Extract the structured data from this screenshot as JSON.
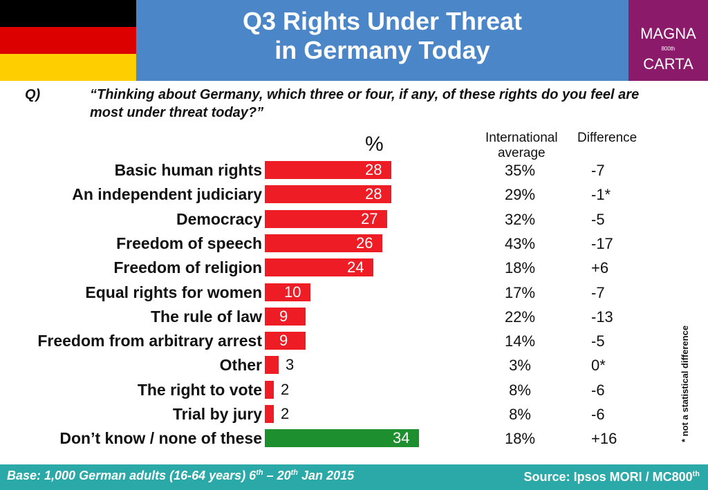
{
  "flag_colors": [
    "#000000",
    "#dd0000",
    "#ffce00"
  ],
  "header": {
    "title_line1": "Q3 Rights Under Threat",
    "title_line2": "in Germany Today"
  },
  "logo": {
    "line1": "MAGNA",
    "line2": "CARTA",
    "small": "800th"
  },
  "question": {
    "label": "Q)",
    "text": "“Thinking about Germany, which three or four, if any, of these rights do you feel are most under threat today?”"
  },
  "columns": {
    "percent": "%",
    "intl_line1": "International",
    "intl_line2": "average",
    "difference": "Difference"
  },
  "chart_data": {
    "type": "bar",
    "orientation": "horizontal",
    "title": "Q3 Rights Under Threat in Germany Today",
    "ylabel": "%",
    "categories": [
      "Basic human rights",
      "An independent judiciary",
      "Democracy",
      "Freedom of speech",
      "Freedom of religion",
      "Equal rights for women",
      "The rule of law",
      "Freedom from arbitrary arrest",
      "Other",
      "The right to vote",
      "Trial by jury",
      "Don’t know / none of these"
    ],
    "values": [
      28,
      28,
      27,
      26,
      24,
      10,
      9,
      9,
      3,
      2,
      2,
      34
    ],
    "bar_colors": [
      "#ee1c24",
      "#ee1c24",
      "#ee1c24",
      "#ee1c24",
      "#ee1c24",
      "#ee1c24",
      "#ee1c24",
      "#ee1c24",
      "#ee1c24",
      "#ee1c24",
      "#ee1c24",
      "#1e8f2e"
    ],
    "international_average": [
      "35%",
      "29%",
      "32%",
      "43%",
      "18%",
      "17%",
      "22%",
      "14%",
      "3%",
      "8%",
      "8%",
      "18%"
    ],
    "difference": [
      "-7",
      "-1*",
      "-5",
      "-17",
      "+6",
      "-7",
      "-13",
      "-5",
      "0*",
      "-6",
      "-6",
      "+16"
    ],
    "xlim": [
      0,
      34
    ]
  },
  "note": "* not a statistical difference",
  "footer": {
    "base_pre": "Base: 1,000 German adults (16-64 years) 6",
    "base_sup1": "th",
    "base_mid": " – 20",
    "base_sup2": "th",
    "base_post": " Jan 2015",
    "source": "Source: Ipsos MORI / MC800",
    "source_sup": "th"
  }
}
